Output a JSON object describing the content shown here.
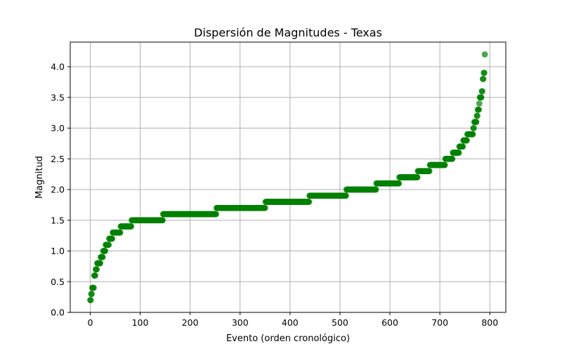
{
  "chart_data": {
    "type": "scatter",
    "title": "Dispersión de Magnitudes - Texas",
    "xlabel": "Evento (orden cronológico)",
    "ylabel": "Magnitud",
    "xlim": [
      -40,
      832
    ],
    "ylim": [
      0.0,
      4.4
    ],
    "xticks": [
      0,
      100,
      200,
      300,
      400,
      500,
      600,
      700,
      800
    ],
    "xtick_labels": [
      "0",
      "100",
      "200",
      "300",
      "400",
      "500",
      "600",
      "700",
      "800"
    ],
    "yticks": [
      0.0,
      0.5,
      1.0,
      1.5,
      2.0,
      2.5,
      3.0,
      3.5,
      4.0
    ],
    "ytick_labels": [
      "0.0",
      "0.5",
      "1.0",
      "1.5",
      "2.0",
      "2.5",
      "3.0",
      "3.5",
      "4.0"
    ],
    "grid": true,
    "marker_color": "#008000",
    "marker_alpha": 0.7,
    "segments": [
      {
        "x_start": 0,
        "x_end": 1,
        "y": 0.2
      },
      {
        "x_start": 2,
        "x_end": 3,
        "y": 0.3
      },
      {
        "x_start": 4,
        "x_end": 7,
        "y": 0.4
      },
      {
        "x_start": 8,
        "x_end": 10,
        "y": 0.6
      },
      {
        "x_start": 11,
        "x_end": 13,
        "y": 0.7
      },
      {
        "x_start": 14,
        "x_end": 20,
        "y": 0.8
      },
      {
        "x_start": 21,
        "x_end": 25,
        "y": 0.9
      },
      {
        "x_start": 26,
        "x_end": 30,
        "y": 1.0
      },
      {
        "x_start": 31,
        "x_end": 37,
        "y": 1.1
      },
      {
        "x_start": 38,
        "x_end": 44,
        "y": 1.2
      },
      {
        "x_start": 45,
        "x_end": 60,
        "y": 1.3
      },
      {
        "x_start": 61,
        "x_end": 82,
        "y": 1.4
      },
      {
        "x_start": 83,
        "x_end": 145,
        "y": 1.5
      },
      {
        "x_start": 146,
        "x_end": 252,
        "y": 1.6
      },
      {
        "x_start": 253,
        "x_end": 350,
        "y": 1.7
      },
      {
        "x_start": 351,
        "x_end": 438,
        "y": 1.8
      },
      {
        "x_start": 439,
        "x_end": 512,
        "y": 1.9
      },
      {
        "x_start": 513,
        "x_end": 572,
        "y": 2.0
      },
      {
        "x_start": 573,
        "x_end": 618,
        "y": 2.1
      },
      {
        "x_start": 619,
        "x_end": 655,
        "y": 2.2
      },
      {
        "x_start": 656,
        "x_end": 679,
        "y": 2.3
      },
      {
        "x_start": 680,
        "x_end": 710,
        "y": 2.4
      },
      {
        "x_start": 711,
        "x_end": 725,
        "y": 2.5
      },
      {
        "x_start": 726,
        "x_end": 738,
        "y": 2.6
      },
      {
        "x_start": 739,
        "x_end": 746,
        "y": 2.7
      },
      {
        "x_start": 747,
        "x_end": 754,
        "y": 2.8
      },
      {
        "x_start": 755,
        "x_end": 766,
        "y": 2.9
      },
      {
        "x_start": 767,
        "x_end": 768,
        "y": 3.0
      },
      {
        "x_start": 769,
        "x_end": 773,
        "y": 3.1
      },
      {
        "x_start": 774,
        "x_end": 775,
        "y": 3.2
      },
      {
        "x_start": 776,
        "x_end": 778,
        "y": 3.3
      },
      {
        "x_start": 779,
        "x_end": 779,
        "y": 3.4
      },
      {
        "x_start": 780,
        "x_end": 783,
        "y": 3.5
      },
      {
        "x_start": 784,
        "x_end": 785,
        "y": 3.6
      },
      {
        "x_start": 786,
        "x_end": 787,
        "y": 3.8
      },
      {
        "x_start": 788,
        "x_end": 789,
        "y": 3.9
      },
      {
        "x_start": 790,
        "x_end": 790,
        "y": 4.2
      }
    ]
  }
}
